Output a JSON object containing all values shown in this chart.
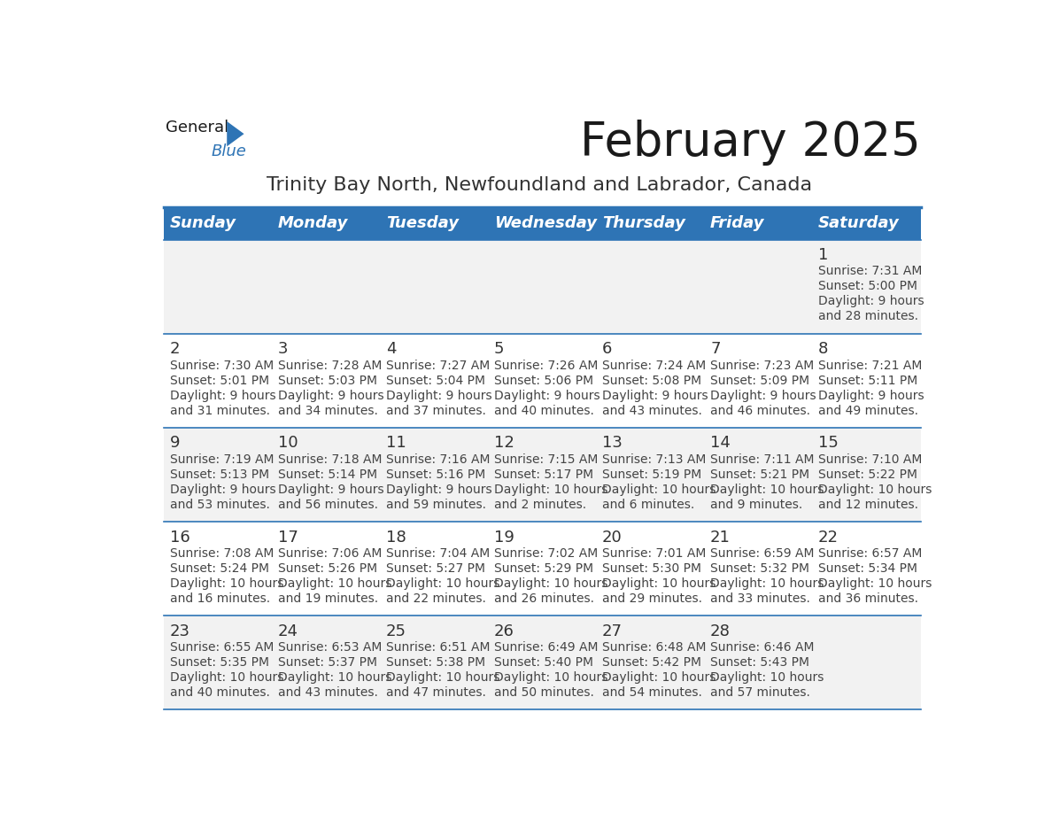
{
  "title": "February 2025",
  "subtitle": "Trinity Bay North, Newfoundland and Labrador, Canada",
  "header_bg": "#2e74b5",
  "header_text": "#ffffff",
  "row_bg_even": "#f2f2f2",
  "row_bg_odd": "#ffffff",
  "separator_color": "#2e74b5",
  "day_names": [
    "Sunday",
    "Monday",
    "Tuesday",
    "Wednesday",
    "Thursday",
    "Friday",
    "Saturday"
  ],
  "weeks": [
    [
      {
        "day": "",
        "sunrise": "",
        "sunset": "",
        "daylight": ""
      },
      {
        "day": "",
        "sunrise": "",
        "sunset": "",
        "daylight": ""
      },
      {
        "day": "",
        "sunrise": "",
        "sunset": "",
        "daylight": ""
      },
      {
        "day": "",
        "sunrise": "",
        "sunset": "",
        "daylight": ""
      },
      {
        "day": "",
        "sunrise": "",
        "sunset": "",
        "daylight": ""
      },
      {
        "day": "",
        "sunrise": "",
        "sunset": "",
        "daylight": ""
      },
      {
        "day": "1",
        "sunrise": "7:31 AM",
        "sunset": "5:00 PM",
        "daylight": "9 hours\nand 28 minutes."
      }
    ],
    [
      {
        "day": "2",
        "sunrise": "7:30 AM",
        "sunset": "5:01 PM",
        "daylight": "9 hours\nand 31 minutes."
      },
      {
        "day": "3",
        "sunrise": "7:28 AM",
        "sunset": "5:03 PM",
        "daylight": "9 hours\nand 34 minutes."
      },
      {
        "day": "4",
        "sunrise": "7:27 AM",
        "sunset": "5:04 PM",
        "daylight": "9 hours\nand 37 minutes."
      },
      {
        "day": "5",
        "sunrise": "7:26 AM",
        "sunset": "5:06 PM",
        "daylight": "9 hours\nand 40 minutes."
      },
      {
        "day": "6",
        "sunrise": "7:24 AM",
        "sunset": "5:08 PM",
        "daylight": "9 hours\nand 43 minutes."
      },
      {
        "day": "7",
        "sunrise": "7:23 AM",
        "sunset": "5:09 PM",
        "daylight": "9 hours\nand 46 minutes."
      },
      {
        "day": "8",
        "sunrise": "7:21 AM",
        "sunset": "5:11 PM",
        "daylight": "9 hours\nand 49 minutes."
      }
    ],
    [
      {
        "day": "9",
        "sunrise": "7:19 AM",
        "sunset": "5:13 PM",
        "daylight": "9 hours\nand 53 minutes."
      },
      {
        "day": "10",
        "sunrise": "7:18 AM",
        "sunset": "5:14 PM",
        "daylight": "9 hours\nand 56 minutes."
      },
      {
        "day": "11",
        "sunrise": "7:16 AM",
        "sunset": "5:16 PM",
        "daylight": "9 hours\nand 59 minutes."
      },
      {
        "day": "12",
        "sunrise": "7:15 AM",
        "sunset": "5:17 PM",
        "daylight": "10 hours\nand 2 minutes."
      },
      {
        "day": "13",
        "sunrise": "7:13 AM",
        "sunset": "5:19 PM",
        "daylight": "10 hours\nand 6 minutes."
      },
      {
        "day": "14",
        "sunrise": "7:11 AM",
        "sunset": "5:21 PM",
        "daylight": "10 hours\nand 9 minutes."
      },
      {
        "day": "15",
        "sunrise": "7:10 AM",
        "sunset": "5:22 PM",
        "daylight": "10 hours\nand 12 minutes."
      }
    ],
    [
      {
        "day": "16",
        "sunrise": "7:08 AM",
        "sunset": "5:24 PM",
        "daylight": "10 hours\nand 16 minutes."
      },
      {
        "day": "17",
        "sunrise": "7:06 AM",
        "sunset": "5:26 PM",
        "daylight": "10 hours\nand 19 minutes."
      },
      {
        "day": "18",
        "sunrise": "7:04 AM",
        "sunset": "5:27 PM",
        "daylight": "10 hours\nand 22 minutes."
      },
      {
        "day": "19",
        "sunrise": "7:02 AM",
        "sunset": "5:29 PM",
        "daylight": "10 hours\nand 26 minutes."
      },
      {
        "day": "20",
        "sunrise": "7:01 AM",
        "sunset": "5:30 PM",
        "daylight": "10 hours\nand 29 minutes."
      },
      {
        "day": "21",
        "sunrise": "6:59 AM",
        "sunset": "5:32 PM",
        "daylight": "10 hours\nand 33 minutes."
      },
      {
        "day": "22",
        "sunrise": "6:57 AM",
        "sunset": "5:34 PM",
        "daylight": "10 hours\nand 36 minutes."
      }
    ],
    [
      {
        "day": "23",
        "sunrise": "6:55 AM",
        "sunset": "5:35 PM",
        "daylight": "10 hours\nand 40 minutes."
      },
      {
        "day": "24",
        "sunrise": "6:53 AM",
        "sunset": "5:37 PM",
        "daylight": "10 hours\nand 43 minutes."
      },
      {
        "day": "25",
        "sunrise": "6:51 AM",
        "sunset": "5:38 PM",
        "daylight": "10 hours\nand 47 minutes."
      },
      {
        "day": "26",
        "sunrise": "6:49 AM",
        "sunset": "5:40 PM",
        "daylight": "10 hours\nand 50 minutes."
      },
      {
        "day": "27",
        "sunrise": "6:48 AM",
        "sunset": "5:42 PM",
        "daylight": "10 hours\nand 54 minutes."
      },
      {
        "day": "28",
        "sunrise": "6:46 AM",
        "sunset": "5:43 PM",
        "daylight": "10 hours\nand 57 minutes."
      },
      {
        "day": "",
        "sunrise": "",
        "sunset": "",
        "daylight": ""
      }
    ]
  ],
  "logo_triangle_color": "#2e74b5",
  "title_fontsize": 38,
  "subtitle_fontsize": 16,
  "header_fontsize": 13,
  "day_num_fontsize": 13,
  "cell_text_fontsize": 10
}
